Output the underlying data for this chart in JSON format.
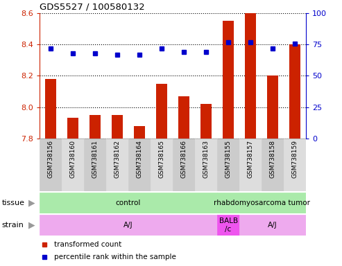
{
  "title": "GDS5527 / 100580132",
  "samples": [
    "GSM738156",
    "GSM738160",
    "GSM738161",
    "GSM738162",
    "GSM738164",
    "GSM738165",
    "GSM738166",
    "GSM738163",
    "GSM738155",
    "GSM738157",
    "GSM738158",
    "GSM738159"
  ],
  "bar_values": [
    8.18,
    7.93,
    7.95,
    7.95,
    7.88,
    8.15,
    8.07,
    8.02,
    8.55,
    8.6,
    8.2,
    8.4
  ],
  "dot_values": [
    72,
    68,
    68,
    67,
    67,
    72,
    69,
    69,
    77,
    77,
    72,
    76
  ],
  "bar_color": "#cc2200",
  "dot_color": "#0000cc",
  "ylim_left": [
    7.8,
    8.6
  ],
  "ylim_right": [
    0,
    100
  ],
  "yticks_left": [
    7.8,
    8.0,
    8.2,
    8.4,
    8.6
  ],
  "yticks_right": [
    0,
    25,
    50,
    75,
    100
  ],
  "tissue_groups": [
    {
      "label": "control",
      "start": 0,
      "end": 8,
      "color": "#aaeaaa"
    },
    {
      "label": "rhabdomyosarcoma tumor",
      "start": 8,
      "end": 12,
      "color": "#aaeaaa"
    }
  ],
  "strain_groups": [
    {
      "label": "A/J",
      "start": 0,
      "end": 8,
      "color": "#eeaaee"
    },
    {
      "label": "BALB\n/c",
      "start": 8,
      "end": 9,
      "color": "#ee55ee"
    },
    {
      "label": "A/J",
      "start": 9,
      "end": 12,
      "color": "#eeaaee"
    }
  ],
  "legend_items": [
    {
      "label": "transformed count",
      "color": "#cc2200"
    },
    {
      "label": "percentile rank within the sample",
      "color": "#0000cc"
    }
  ],
  "axis_label_color_left": "#cc2200",
  "axis_label_color_right": "#0000cc",
  "arrow_color": "#999999",
  "sample_box_color": "#cccccc",
  "sample_box_alt_color": "#dddddd"
}
